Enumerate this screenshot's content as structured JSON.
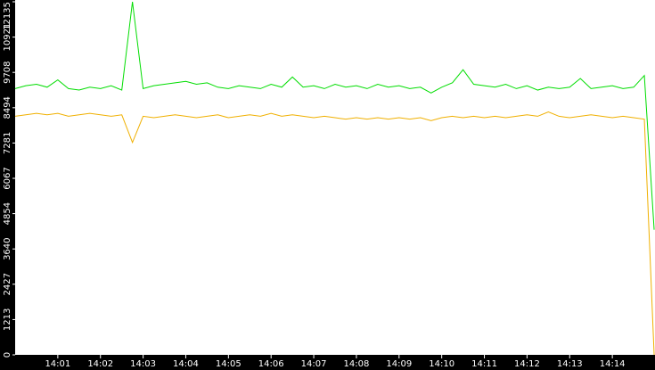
{
  "chart_data": {
    "type": "line",
    "x": [
      840,
      840.25,
      840.5,
      840.75,
      841,
      841.25,
      841.5,
      841.75,
      842,
      842.25,
      842.5,
      842.75,
      843,
      843.25,
      843.5,
      843.75,
      844,
      844.25,
      844.5,
      844.75,
      845,
      845.25,
      845.5,
      845.75,
      846,
      846.25,
      846.5,
      846.75,
      847,
      847.25,
      847.5,
      847.75,
      848,
      848.25,
      848.5,
      848.75,
      849,
      849.25,
      849.5,
      849.75,
      850,
      850.25,
      850.5,
      850.75,
      851,
      851.25,
      851.5,
      851.75,
      852,
      852.25,
      852.5,
      852.75,
      853,
      853.25,
      853.5,
      853.75,
      854,
      854.25,
      854.5,
      854.75,
      854.98
    ],
    "series": [
      {
        "color": "#00dd00",
        "values": [
          9150,
          9250,
          9300,
          9200,
          9450,
          9150,
          9100,
          9200,
          9150,
          9250,
          9100,
          12135,
          9150,
          9250,
          9300,
          9350,
          9400,
          9300,
          9350,
          9200,
          9150,
          9250,
          9200,
          9150,
          9300,
          9200,
          9550,
          9200,
          9250,
          9150,
          9300,
          9200,
          9250,
          9150,
          9300,
          9200,
          9250,
          9150,
          9200,
          9000,
          9200,
          9350,
          9800,
          9300,
          9250,
          9200,
          9300,
          9150,
          9250,
          9100,
          9200,
          9150,
          9200,
          9500,
          9150,
          9200,
          9250,
          9150,
          9200,
          9600,
          4300
        ]
      },
      {
        "color": "#f0b000",
        "values": [
          8200,
          8250,
          8300,
          8250,
          8300,
          8200,
          8250,
          8300,
          8250,
          8200,
          8250,
          7300,
          8200,
          8150,
          8200,
          8250,
          8200,
          8150,
          8200,
          8250,
          8150,
          8200,
          8250,
          8200,
          8300,
          8200,
          8250,
          8200,
          8150,
          8200,
          8150,
          8100,
          8150,
          8100,
          8150,
          8100,
          8150,
          8100,
          8150,
          8050,
          8150,
          8200,
          8150,
          8200,
          8150,
          8200,
          8150,
          8200,
          8250,
          8200,
          8350,
          8200,
          8150,
          8200,
          8250,
          8200,
          8150,
          8200,
          8150,
          8100,
          0
        ]
      }
    ],
    "xlim": [
      840,
      855
    ],
    "xticks": [
      {
        "value": 841,
        "label": "14:01"
      },
      {
        "value": 842,
        "label": "14:02"
      },
      {
        "value": 843,
        "label": "14:03"
      },
      {
        "value": 844,
        "label": "14:04"
      },
      {
        "value": 845,
        "label": "14:05"
      },
      {
        "value": 846,
        "label": "14:06"
      },
      {
        "value": 847,
        "label": "14:07"
      },
      {
        "value": 848,
        "label": "14:08"
      },
      {
        "value": 849,
        "label": "14:09"
      },
      {
        "value": 850,
        "label": "14:10"
      },
      {
        "value": 851,
        "label": "14:11"
      },
      {
        "value": 852,
        "label": "14:12"
      },
      {
        "value": 853,
        "label": "14:13"
      },
      {
        "value": 854,
        "label": "14:14"
      }
    ],
    "ylim": [
      0,
      12135
    ],
    "yticks": [
      0,
      1213,
      2427,
      3640,
      4854,
      6067,
      7281,
      8494,
      9708,
      10921,
      12135
    ]
  }
}
